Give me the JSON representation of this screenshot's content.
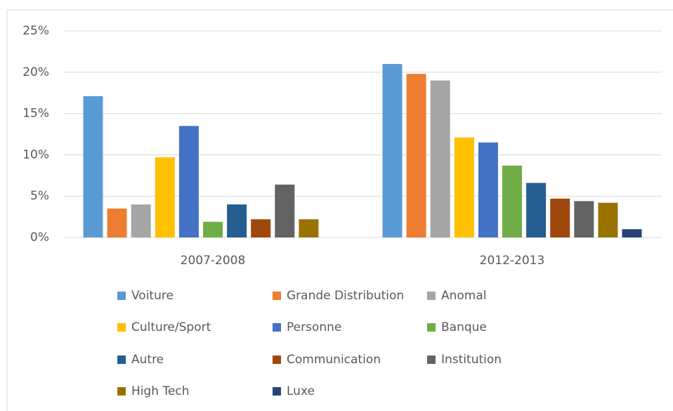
{
  "chart_data": {
    "type": "bar",
    "categories": [
      "2007-2008",
      "2012-2013"
    ],
    "series": [
      {
        "name": "Voiture",
        "color": "#5b9bd5",
        "values": [
          17.1,
          21.0
        ]
      },
      {
        "name": "Grande Distribution",
        "color": "#ed7d31",
        "values": [
          3.5,
          19.8
        ]
      },
      {
        "name": "Anomal",
        "color": "#a5a5a5",
        "values": [
          4.0,
          19.0
        ]
      },
      {
        "name": "Culture/Sport",
        "color": "#ffc000",
        "values": [
          9.7,
          12.1
        ]
      },
      {
        "name": "Personne",
        "color": "#4472c4",
        "values": [
          13.5,
          11.5
        ]
      },
      {
        "name": "Banque",
        "color": "#70ad47",
        "values": [
          1.9,
          8.7
        ]
      },
      {
        "name": "Autre",
        "color": "#255e91",
        "values": [
          4.0,
          6.6
        ]
      },
      {
        "name": "Communication",
        "color": "#9e480e",
        "values": [
          2.2,
          4.7
        ]
      },
      {
        "name": "Institution",
        "color": "#636363",
        "values": [
          6.4,
          4.4
        ]
      },
      {
        "name": "High Tech",
        "color": "#997300",
        "values": [
          2.2,
          4.2
        ]
      },
      {
        "name": "Luxe",
        "color": "#264478",
        "values": [
          null,
          1.0
        ]
      }
    ],
    "ylim": [
      0,
      25
    ],
    "yticks": [
      {
        "value": 0,
        "label": "0%"
      },
      {
        "value": 5,
        "label": "5%"
      },
      {
        "value": 10,
        "label": "10%"
      },
      {
        "value": 15,
        "label": "15%"
      },
      {
        "value": 20,
        "label": "20%"
      },
      {
        "value": 25,
        "label": "25%"
      }
    ],
    "grid": true,
    "legend": "bottom"
  }
}
